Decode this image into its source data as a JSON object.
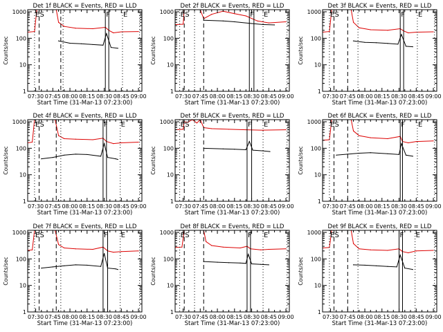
{
  "figure": {
    "shared_xlabel": "Start Time (31-Mar-13 07:23:00)",
    "ylabel": "Counts/sec",
    "x_ticks": [
      "07:30",
      "07:45",
      "08:00",
      "08:15",
      "08:30",
      "08:45",
      "09:00"
    ],
    "y_ticks": [
      "1",
      "10",
      "100",
      "1000"
    ],
    "marker_labels": [
      "E",
      "S",
      "F",
      "E"
    ],
    "colors": {
      "events": "#000000",
      "lld": "#dd0000",
      "axes": "#000000"
    }
  },
  "chart_data": [
    {
      "type": "line",
      "title": "Det 1f BLACK = Events, RED = LLD",
      "xlabel": "Start Time (31-Mar-13 07:23:00)",
      "ylabel": "Counts/sec",
      "xlim": [
        "07:23",
        "09:03"
      ],
      "ylim": [
        1,
        1200
      ],
      "yscale": "log",
      "markers": {
        "solid": [
          "08:31",
          "08:34"
        ],
        "dashed": [
          "07:33",
          "07:52"
        ],
        "dotted": [
          "07:29",
          "07:54",
          "08:46",
          "09:01"
        ]
      },
      "series": [
        {
          "name": "Events",
          "color": "#000000",
          "x": [
            "07:50",
            "08:00",
            "08:10",
            "08:20",
            "08:29",
            "08:32",
            "08:36",
            "08:42"
          ],
          "y": [
            80,
            65,
            62,
            58,
            55,
            150,
            45,
            42
          ]
        },
        {
          "name": "LLD",
          "color": "#dd0000",
          "x": [
            "07:23",
            "07:29",
            "07:31",
            "07:48",
            "07:50",
            "07:55",
            "08:05",
            "08:20",
            "08:31",
            "08:34",
            "08:38",
            "08:45",
            "09:00"
          ],
          "y": [
            170,
            180,
            1200,
            1200,
            400,
            280,
            240,
            230,
            260,
            200,
            160,
            175,
            180
          ]
        }
      ]
    },
    {
      "type": "line",
      "title": "Det 2f BLACK = Events, RED = LLD",
      "xlabel": "Start Time (31-Mar-13 07:23:00)",
      "ylabel": "Counts/sec",
      "xlim": [
        "07:23",
        "09:03"
      ],
      "ylim": [
        1,
        1200
      ],
      "yscale": "log",
      "markers": {
        "solid": [
          "08:28",
          "08:32"
        ],
        "dashed": [
          "07:31",
          "07:48"
        ],
        "dotted": [
          "07:27",
          "07:40",
          "08:40",
          "09:01"
        ]
      },
      "series": [
        {
          "name": "Events",
          "color": "#000000",
          "x": [
            "07:48",
            "08:05",
            "08:15",
            "08:30",
            "08:40",
            "08:50"
          ],
          "y": [
            480,
            450,
            420,
            360,
            330,
            320
          ]
        },
        {
          "name": "LLD",
          "color": "#dd0000",
          "x": [
            "07:23",
            "07:30",
            "07:31",
            "07:45",
            "07:48",
            "07:55",
            "08:05",
            "08:15",
            "08:25",
            "08:35",
            "08:45",
            "09:00"
          ],
          "y": [
            330,
            340,
            1200,
            1200,
            550,
            800,
            1050,
            850,
            700,
            450,
            380,
            420
          ]
        }
      ]
    },
    {
      "type": "line",
      "title": "Det 3f BLACK = Events, RED = LLD",
      "xlabel": "Start Time (31-Mar-13 07:23:00)",
      "ylabel": "Counts/sec",
      "xlim": [
        "07:23",
        "09:03"
      ],
      "ylim": [
        1,
        1200
      ],
      "yscale": "log",
      "markers": {
        "solid": [
          "08:31",
          "08:34"
        ],
        "dashed": [
          "07:33",
          "07:45"
        ],
        "dotted": [
          "07:29",
          "07:54",
          "08:46",
          "09:01"
        ]
      },
      "series": [
        {
          "name": "Events",
          "color": "#000000",
          "x": [
            "07:50",
            "08:00",
            "08:10",
            "08:20",
            "08:29",
            "08:32",
            "08:36",
            "08:42"
          ],
          "y": [
            80,
            70,
            68,
            64,
            60,
            140,
            50,
            48
          ]
        },
        {
          "name": "LLD",
          "color": "#dd0000",
          "x": [
            "07:23",
            "07:29",
            "07:31",
            "07:48",
            "07:50",
            "07:55",
            "08:05",
            "08:20",
            "08:31",
            "08:34",
            "08:38",
            "08:45",
            "09:00"
          ],
          "y": [
            170,
            180,
            1200,
            1200,
            400,
            250,
            210,
            200,
            230,
            190,
            160,
            170,
            175
          ]
        }
      ]
    },
    {
      "type": "line",
      "title": "Det 4f BLACK = Events, RED = LLD",
      "xlabel": "Start Time (31-Mar-13 07:23:00)",
      "ylabel": "Counts/sec",
      "xlim": [
        "07:23",
        "09:03"
      ],
      "ylim": [
        1,
        1200
      ],
      "yscale": "log",
      "markers": {
        "solid": [
          "08:29",
          "08:32"
        ],
        "dashed": [
          "07:33",
          "07:48"
        ],
        "dotted": [
          "07:29",
          "07:52",
          "08:44",
          "09:01"
        ]
      },
      "series": [
        {
          "name": "Events",
          "color": "#000000",
          "x": [
            "07:35",
            "07:45",
            "07:55",
            "08:05",
            "08:15",
            "08:27",
            "08:30",
            "08:33",
            "08:40",
            "08:42"
          ],
          "y": [
            40,
            45,
            55,
            60,
            58,
            50,
            150,
            45,
            40,
            38
          ]
        },
        {
          "name": "LLD",
          "color": "#dd0000",
          "x": [
            "07:23",
            "07:27",
            "07:29",
            "07:47",
            "07:50",
            "07:55",
            "08:05",
            "08:20",
            "08:29",
            "08:32",
            "08:38",
            "08:45",
            "09:00"
          ],
          "y": [
            160,
            170,
            1200,
            1200,
            300,
            230,
            220,
            210,
            240,
            180,
            150,
            160,
            170
          ]
        }
      ]
    },
    {
      "type": "line",
      "title": "Det 5f BLACK = Events, RED = LLD",
      "xlabel": "Start Time (31-Mar-13 07:23:00)",
      "ylabel": "Counts/sec",
      "xlim": [
        "07:23",
        "09:03"
      ],
      "ylim": [
        1,
        1200
      ],
      "yscale": "log",
      "markers": {
        "solid": [
          "08:26",
          "08:30"
        ],
        "dashed": [
          "07:31",
          "07:48"
        ],
        "dotted": [
          "07:27",
          "07:40",
          "08:40",
          "09:01"
        ]
      },
      "series": [
        {
          "name": "Events",
          "color": "#000000",
          "x": [
            "07:48",
            "08:05",
            "08:15",
            "08:25",
            "08:28",
            "08:31",
            "08:40",
            "08:46"
          ],
          "y": [
            100,
            95,
            92,
            88,
            180,
            85,
            80,
            75
          ]
        },
        {
          "name": "LLD",
          "color": "#dd0000",
          "x": [
            "07:23",
            "07:30",
            "07:31",
            "07:34",
            "07:38",
            "07:42",
            "07:45",
            "07:48",
            "07:55",
            "08:10",
            "08:25",
            "08:40",
            "09:00"
          ],
          "y": [
            500,
            520,
            1000,
            950,
            1200,
            900,
            1200,
            600,
            550,
            520,
            500,
            480,
            500
          ]
        }
      ]
    },
    {
      "type": "line",
      "title": "Det 6f BLACK = Events, RED = LLD",
      "xlabel": "Start Time (31-Mar-13 07:23:00)",
      "ylabel": "Counts/sec",
      "xlim": [
        "07:23",
        "09:03"
      ],
      "ylim": [
        1,
        1200
      ],
      "yscale": "log",
      "markers": {
        "solid": [
          "08:31",
          "08:33"
        ],
        "dashed": [
          "07:33",
          "07:45"
        ],
        "dotted": [
          "07:29",
          "07:54",
          "08:46",
          "09:01"
        ]
      },
      "series": [
        {
          "name": "Events",
          "color": "#000000",
          "x": [
            "07:35",
            "07:45",
            "07:55",
            "08:05",
            "08:20",
            "08:30",
            "08:32",
            "08:36",
            "08:42"
          ],
          "y": [
            55,
            60,
            65,
            68,
            62,
            58,
            150,
            55,
            50
          ]
        },
        {
          "name": "LLD",
          "color": "#dd0000",
          "x": [
            "07:23",
            "07:29",
            "07:31",
            "07:48",
            "07:50",
            "07:55",
            "08:05",
            "08:20",
            "08:31",
            "08:33",
            "08:38",
            "08:45",
            "09:00"
          ],
          "y": [
            200,
            210,
            1200,
            1200,
            450,
            300,
            250,
            230,
            280,
            180,
            160,
            180,
            190
          ]
        }
      ]
    },
    {
      "type": "line",
      "title": "Det 7f BLACK = Events, RED = LLD",
      "xlabel": "Start Time (31-Mar-13 07:23:00)",
      "ylabel": "Counts/sec",
      "xlim": [
        "07:23",
        "09:03"
      ],
      "ylim": [
        1,
        1200
      ],
      "yscale": "log",
      "markers": {
        "solid": [
          "08:29",
          "08:33"
        ],
        "dashed": [
          "07:33",
          "07:48"
        ],
        "dotted": [
          "07:29",
          "07:52",
          "08:44",
          "09:01"
        ]
      },
      "series": [
        {
          "name": "Events",
          "color": "#000000",
          "x": [
            "07:35",
            "07:45",
            "07:55",
            "08:05",
            "08:15",
            "08:27",
            "08:30",
            "08:33",
            "08:40",
            "08:42"
          ],
          "y": [
            45,
            50,
            55,
            60,
            58,
            52,
            160,
            45,
            42,
            40
          ]
        },
        {
          "name": "LLD",
          "color": "#dd0000",
          "x": [
            "07:23",
            "07:27",
            "07:29",
            "07:47",
            "07:50",
            "07:55",
            "08:05",
            "08:20",
            "08:29",
            "08:33",
            "08:38",
            "08:45",
            "09:00"
          ],
          "y": [
            210,
            220,
            1200,
            1200,
            350,
            260,
            240,
            230,
            280,
            200,
            180,
            190,
            200
          ]
        }
      ]
    },
    {
      "type": "line",
      "title": "Det 8f BLACK = Events, RED = LLD",
      "xlabel": "Start Time (31-Mar-13 07:23:00)",
      "ylabel": "Counts/sec",
      "xlim": [
        "07:23",
        "09:03"
      ],
      "ylim": [
        1,
        1200
      ],
      "yscale": "log",
      "markers": {
        "solid": [
          "08:26",
          "08:29"
        ],
        "dashed": [
          "07:31",
          "07:48"
        ],
        "dotted": [
          "07:27",
          "07:40",
          "08:40",
          "09:01"
        ]
      },
      "series": [
        {
          "name": "Events",
          "color": "#000000",
          "x": [
            "07:48",
            "08:00",
            "08:10",
            "08:20",
            "08:25",
            "08:27",
            "08:30",
            "08:38",
            "08:45"
          ],
          "y": [
            80,
            75,
            72,
            70,
            68,
            150,
            65,
            62,
            60
          ]
        },
        {
          "name": "LLD",
          "color": "#dd0000",
          "x": [
            "07:23",
            "07:29",
            "07:31",
            "07:48",
            "07:50",
            "07:55",
            "08:05",
            "08:20",
            "08:26",
            "08:29",
            "08:38",
            "08:45",
            "09:00"
          ],
          "y": [
            270,
            280,
            1200,
            1200,
            450,
            320,
            280,
            260,
            300,
            240,
            220,
            230,
            240
          ]
        }
      ]
    },
    {
      "type": "line",
      "title": "Det 9f BLACK = Events, RED = LLD",
      "xlabel": "Start Time (31-Mar-13 07:23:00)",
      "ylabel": "Counts/sec",
      "xlim": [
        "07:23",
        "09:03"
      ],
      "ylim": [
        1,
        1200
      ],
      "yscale": "log",
      "markers": {
        "solid": [
          "08:30",
          "08:33"
        ],
        "dashed": [
          "07:33",
          "07:45"
        ],
        "dotted": [
          "07:29",
          "07:54",
          "08:44",
          "09:01"
        ]
      },
      "series": [
        {
          "name": "Events",
          "color": "#000000",
          "x": [
            "07:50",
            "08:00",
            "08:10",
            "08:20",
            "08:28",
            "08:31",
            "08:35",
            "08:42"
          ],
          "y": [
            60,
            58,
            55,
            52,
            50,
            140,
            45,
            40
          ]
        },
        {
          "name": "LLD",
          "color": "#dd0000",
          "x": [
            "07:23",
            "07:29",
            "07:31",
            "07:48",
            "07:50",
            "07:55",
            "08:05",
            "08:20",
            "08:30",
            "08:33",
            "08:38",
            "08:45",
            "09:00"
          ],
          "y": [
            260,
            270,
            1200,
            1200,
            380,
            240,
            220,
            210,
            240,
            190,
            170,
            200,
            210
          ]
        }
      ]
    }
  ]
}
